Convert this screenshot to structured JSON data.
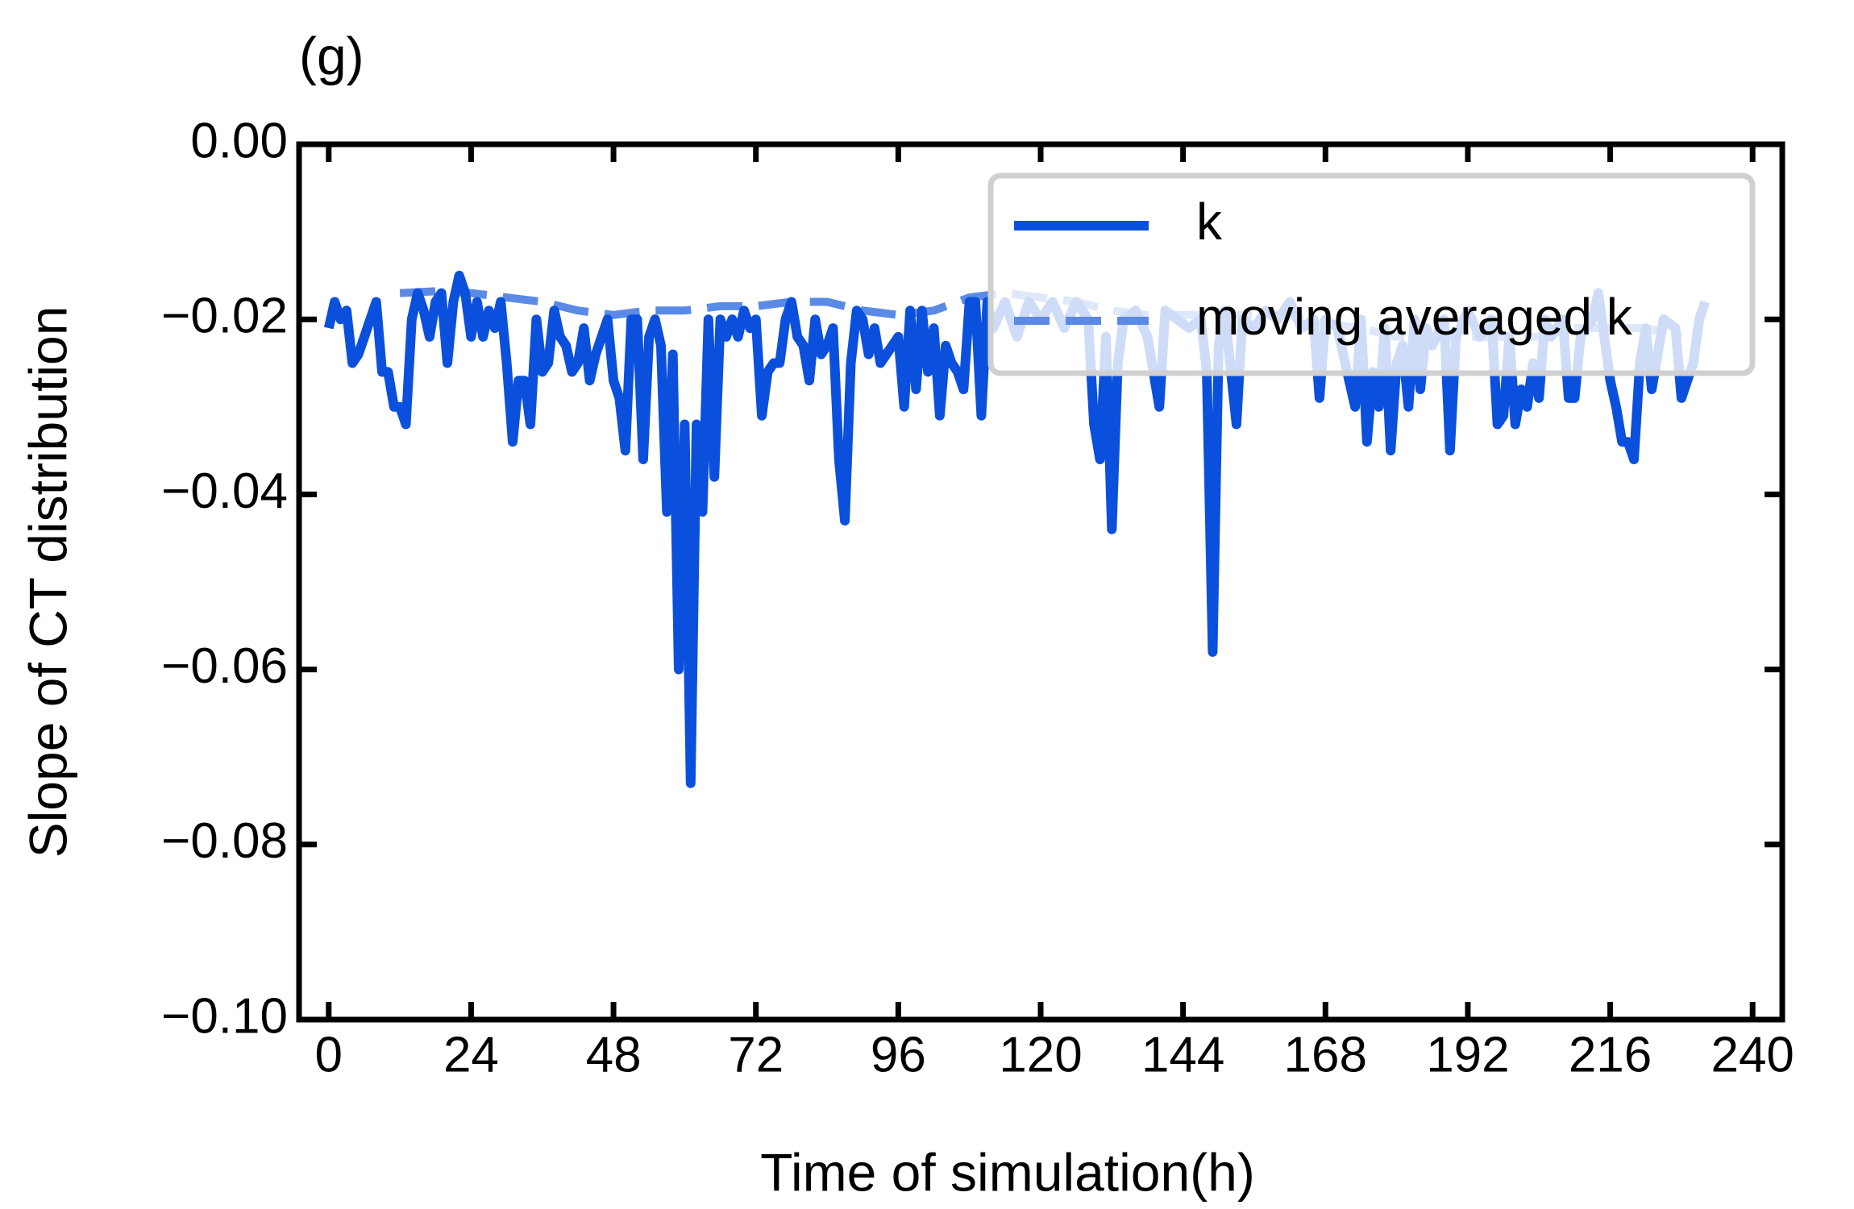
{
  "chart_data": {
    "type": "line",
    "title": "(g)",
    "x_label": "Time of simulation(h)",
    "y_label": "Slope of CT distribution",
    "xlim": [
      -5,
      245
    ],
    "ylim": [
      -0.1,
      0
    ],
    "xticks": [
      0,
      24,
      48,
      72,
      96,
      120,
      144,
      168,
      192,
      216,
      240
    ],
    "yticks": [
      {
        "value": -0.1,
        "label": "−0.10"
      },
      {
        "value": -0.08,
        "label": "−0.08"
      },
      {
        "value": -0.06,
        "label": "−0.06"
      },
      {
        "value": -0.04,
        "label": "−0.04"
      },
      {
        "value": -0.02,
        "label": "−0.02"
      },
      {
        "value": 0,
        "label": "0.00"
      }
    ],
    "legend": "upper right",
    "series": [
      {
        "name": "k",
        "color": "#0b50dc",
        "style": "solid",
        "x": [
          0,
          1,
          2,
          3,
          4,
          5,
          6,
          8,
          9,
          10,
          11,
          12,
          13,
          14,
          15,
          16,
          17,
          18,
          19,
          20,
          21,
          22,
          23,
          24,
          25,
          26,
          27,
          28,
          29,
          30,
          31,
          32,
          33,
          34,
          35,
          36,
          37,
          38,
          39,
          40,
          41,
          42,
          43,
          44,
          45,
          46,
          47,
          48,
          49,
          50,
          51,
          52,
          53,
          54,
          55,
          56,
          57,
          58,
          59,
          60,
          61,
          62,
          63,
          64,
          65,
          66,
          67,
          68,
          69,
          70,
          71,
          72,
          73,
          74,
          75,
          76,
          77,
          78,
          79,
          80,
          81,
          82,
          83,
          84,
          85,
          86,
          87,
          88,
          89,
          90,
          91,
          92,
          93,
          94,
          95,
          96,
          97,
          98,
          99,
          100,
          101,
          102,
          103,
          104,
          105,
          106,
          107,
          108,
          109,
          110,
          111,
          112,
          114,
          116,
          118,
          120,
          122,
          124,
          126,
          128,
          129,
          130,
          131,
          132,
          133,
          134,
          136,
          138,
          140,
          141,
          143,
          145,
          147,
          148,
          149,
          150,
          151,
          153,
          154,
          156,
          158,
          160,
          162,
          164,
          166,
          167,
          168,
          170,
          172,
          173,
          174,
          175,
          176,
          177,
          178,
          179,
          180,
          181,
          182,
          183,
          184,
          185,
          186,
          188,
          189,
          190,
          192,
          194,
          196,
          197,
          198,
          199,
          200,
          201,
          202,
          203,
          204,
          205,
          206,
          208,
          209,
          210,
          211,
          213,
          214,
          215,
          216,
          217,
          218,
          219,
          220,
          221,
          222,
          223,
          225,
          227,
          228,
          229,
          230,
          231,
          232
        ],
        "values": [
          -0.021,
          -0.018,
          -0.02,
          -0.019,
          -0.025,
          -0.024,
          -0.022,
          -0.018,
          -0.026,
          -0.026,
          -0.03,
          -0.03,
          -0.032,
          -0.02,
          -0.017,
          -0.019,
          -0.022,
          -0.018,
          -0.017,
          -0.025,
          -0.018,
          -0.015,
          -0.017,
          -0.022,
          -0.018,
          -0.022,
          -0.019,
          -0.021,
          -0.018,
          -0.025,
          -0.034,
          -0.027,
          -0.027,
          -0.032,
          -0.02,
          -0.026,
          -0.025,
          -0.019,
          -0.022,
          -0.023,
          -0.026,
          -0.025,
          -0.021,
          -0.027,
          -0.024,
          -0.022,
          -0.02,
          -0.027,
          -0.029,
          -0.035,
          -0.02,
          -0.02,
          -0.036,
          -0.022,
          -0.02,
          -0.023,
          -0.042,
          -0.024,
          -0.06,
          -0.032,
          -0.073,
          -0.032,
          -0.042,
          -0.02,
          -0.038,
          -0.02,
          -0.022,
          -0.02,
          -0.022,
          -0.019,
          -0.021,
          -0.02,
          -0.031,
          -0.026,
          -0.025,
          -0.025,
          -0.02,
          -0.018,
          -0.022,
          -0.023,
          -0.027,
          -0.02,
          -0.024,
          -0.023,
          -0.021,
          -0.036,
          -0.043,
          -0.025,
          -0.019,
          -0.02,
          -0.024,
          -0.021,
          -0.025,
          -0.024,
          -0.023,
          -0.022,
          -0.03,
          -0.019,
          -0.028,
          -0.019,
          -0.026,
          -0.021,
          -0.031,
          -0.023,
          -0.025,
          -0.026,
          -0.028,
          -0.018,
          -0.018,
          -0.031,
          -0.018,
          -0.021,
          -0.018,
          -0.022,
          -0.018,
          -0.02,
          -0.018,
          -0.021,
          -0.018,
          -0.02,
          -0.032,
          -0.036,
          -0.022,
          -0.044,
          -0.025,
          -0.02,
          -0.019,
          -0.022,
          -0.03,
          -0.019,
          -0.02,
          -0.021,
          -0.02,
          -0.026,
          -0.058,
          -0.023,
          -0.019,
          -0.032,
          -0.02,
          -0.021,
          -0.019,
          -0.02,
          -0.018,
          -0.021,
          -0.02,
          -0.029,
          -0.02,
          -0.021,
          -0.027,
          -0.03,
          -0.02,
          -0.034,
          -0.026,
          -0.03,
          -0.021,
          -0.035,
          -0.025,
          -0.023,
          -0.03,
          -0.02,
          -0.028,
          -0.021,
          -0.023,
          -0.02,
          -0.035,
          -0.022,
          -0.019,
          -0.022,
          -0.02,
          -0.032,
          -0.031,
          -0.022,
          -0.032,
          -0.028,
          -0.03,
          -0.025,
          -0.029,
          -0.02,
          -0.022,
          -0.02,
          -0.029,
          -0.029,
          -0.022,
          -0.02,
          -0.017,
          -0.022,
          -0.027,
          -0.03,
          -0.034,
          -0.034,
          -0.036,
          -0.025,
          -0.021,
          -0.028,
          -0.02,
          -0.021,
          -0.029,
          -0.027,
          -0.025,
          -0.02,
          -0.018
        ]
      },
      {
        "name": "moving averaged k",
        "color": "#5b8ae6",
        "style": "dashed",
        "x": [
          12,
          18,
          24,
          30,
          36,
          42,
          48,
          54,
          60,
          66,
          72,
          78,
          84,
          90,
          96,
          102,
          108,
          114,
          120,
          126,
          132,
          138,
          144,
          150,
          156,
          162,
          168,
          174,
          180,
          186,
          192,
          198,
          204,
          210,
          216,
          222,
          228
        ],
        "values": [
          -0.017,
          -0.0168,
          -0.017,
          -0.0175,
          -0.018,
          -0.019,
          -0.0195,
          -0.019,
          -0.019,
          -0.0185,
          -0.0185,
          -0.018,
          -0.018,
          -0.019,
          -0.0195,
          -0.019,
          -0.0175,
          -0.017,
          -0.0175,
          -0.018,
          -0.019,
          -0.0195,
          -0.0195,
          -0.0195,
          -0.0195,
          -0.0195,
          -0.0205,
          -0.021,
          -0.022,
          -0.022,
          -0.022,
          -0.022,
          -0.022,
          -0.021,
          -0.021,
          -0.021,
          -0.022
        ]
      }
    ]
  }
}
